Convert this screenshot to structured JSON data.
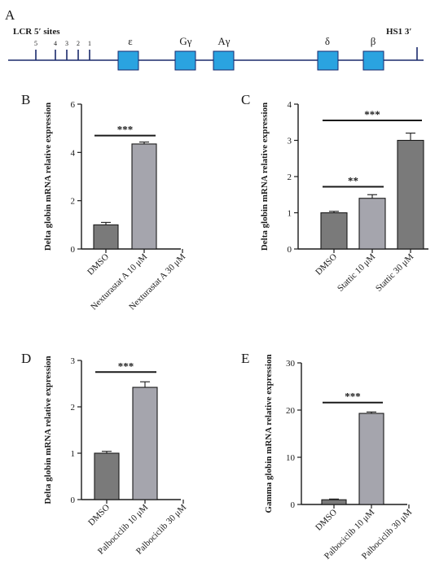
{
  "colors": {
    "axis": "#1a1a1a",
    "line": "#1a2a6c",
    "gene_box": "#2aa3e0",
    "gene_box_stroke": "#1a2a6c",
    "bar_dark": "#7a7a7a",
    "bar_light": "#a5a5ad"
  },
  "chart_data": [
    {
      "panel": "A",
      "type": "diagram",
      "lcr_label": "LCR 5′ sites",
      "hs_sites": [
        "5",
        "4",
        "3",
        "2",
        "1"
      ],
      "genes": [
        "ε",
        "Gγ",
        "Aγ",
        "δ",
        "β"
      ],
      "end_label": "HS1 3′"
    },
    {
      "panel": "B",
      "type": "bar",
      "ylabel": "Delta globin mRNA relative expression",
      "ylim": [
        0,
        6
      ],
      "yticks": [
        "0",
        "2",
        "4",
        "6"
      ],
      "categories": [
        "DMSO",
        "Nexturastat A 10 μM",
        "Nexturastat A 30 μM"
      ],
      "values": [
        1.0,
        4.35,
        0
      ],
      "errors": [
        0.1,
        0.08,
        0
      ],
      "colors": [
        "#7a7a7a",
        "#a5a5ad",
        "#7a7a7a"
      ],
      "significance": [
        {
          "from": 0,
          "to": 1,
          "label": "***",
          "y": 4.7
        }
      ]
    },
    {
      "panel": "C",
      "type": "bar",
      "ylabel": "Delta globin mRNA relative expression",
      "ylim": [
        0,
        4
      ],
      "yticks": [
        "0",
        "1",
        "2",
        "3",
        "4"
      ],
      "categories": [
        "DMSO",
        "Stattic 10  μM",
        "Stattic 30  μM"
      ],
      "values": [
        1.0,
        1.4,
        3.0
      ],
      "errors": [
        0.04,
        0.1,
        0.2
      ],
      "colors": [
        "#7a7a7a",
        "#a5a5ad",
        "#7a7a7a"
      ],
      "significance": [
        {
          "from": 0,
          "to": 1,
          "label": "**",
          "y": 1.72
        },
        {
          "from": 0,
          "to": 2,
          "label": "***",
          "y": 3.55
        }
      ]
    },
    {
      "panel": "D",
      "type": "bar",
      "ylabel": "Delta globin mRNA relative expression",
      "ylim": [
        0,
        3
      ],
      "yticks": [
        "0",
        "1",
        "2",
        "3"
      ],
      "categories": [
        "DMSO",
        "Palbociclib 10 μM",
        "Palbociclib 30 μM"
      ],
      "values": [
        1.0,
        2.42,
        0
      ],
      "errors": [
        0.04,
        0.12,
        0
      ],
      "colors": [
        "#7a7a7a",
        "#a5a5ad",
        "#7a7a7a"
      ],
      "significance": [
        {
          "from": 0,
          "to": 1,
          "label": "***",
          "y": 2.75
        }
      ]
    },
    {
      "panel": "E",
      "type": "bar",
      "ylabel": "Gamma globin mRNA relative expression",
      "ylim": [
        0,
        30
      ],
      "yticks": [
        "0",
        "10",
        "20",
        "30"
      ],
      "categories": [
        "DMSO",
        "Palbociclib 10 μM",
        "Palbociclib 30 μM"
      ],
      "values": [
        1.0,
        19.3,
        0
      ],
      "errors": [
        0.15,
        0.3,
        0
      ],
      "colors": [
        "#7a7a7a",
        "#a5a5ad",
        "#7a7a7a"
      ],
      "significance": [
        {
          "from": 0,
          "to": 1,
          "label": "***",
          "y": 21.6
        }
      ]
    }
  ]
}
